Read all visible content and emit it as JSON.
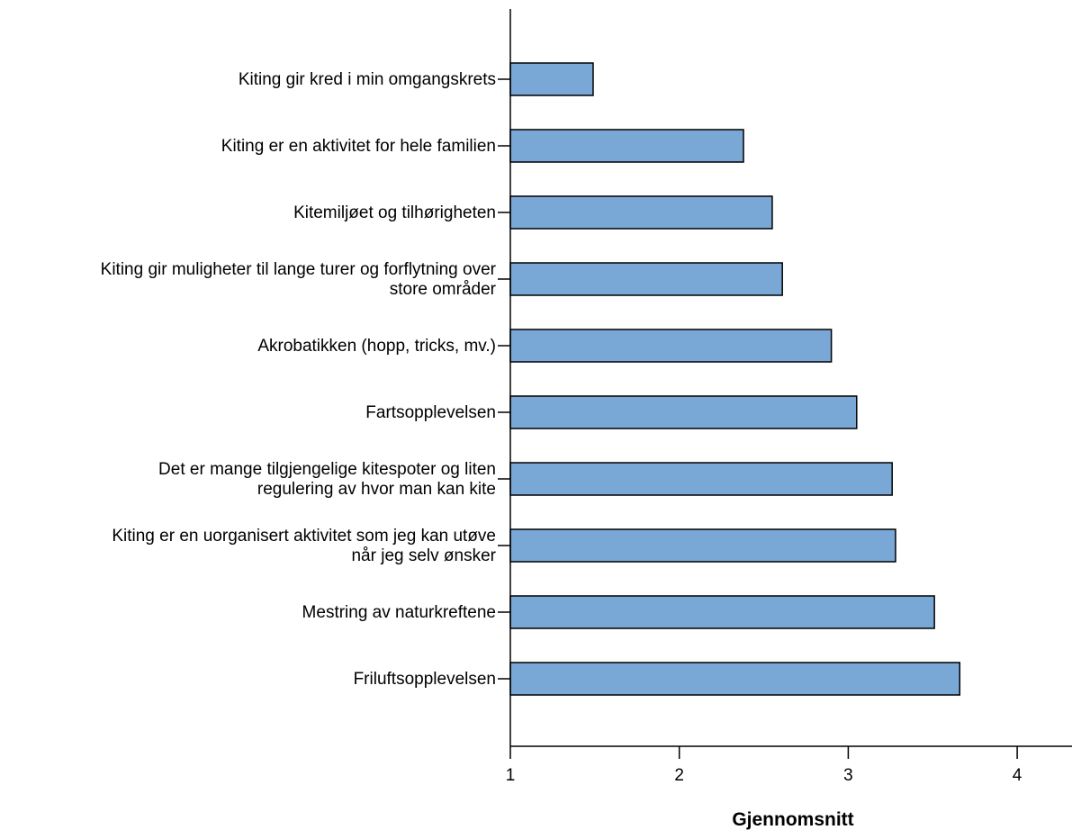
{
  "chart_data": {
    "type": "bar",
    "orientation": "horizontal",
    "categories": [
      [
        "Kiting gir kred i min omgangskrets"
      ],
      [
        "Kiting er en aktivitet for hele familien"
      ],
      [
        "Kitemiljøet og tilhørigheten"
      ],
      [
        "Kiting gir muligheter til lange turer og forflytning over",
        "store områder"
      ],
      [
        "Akrobatikken (hopp, tricks, mv.)"
      ],
      [
        "Fartsopplevelsen"
      ],
      [
        "Det er mange tilgjengelige kitespoter og liten",
        "regulering av hvor man kan kite"
      ],
      [
        "Kiting er en uorganisert aktivitet som jeg kan utøve",
        "når jeg selv ønsker"
      ],
      [
        "Mestring av naturkreftene"
      ],
      [
        "Friluftsopplevelsen"
      ]
    ],
    "values": [
      1.49,
      2.38,
      2.55,
      2.61,
      2.9,
      3.05,
      3.26,
      3.28,
      3.51,
      3.66
    ],
    "xlabel": "Gjennomsnitt",
    "ylabel": "",
    "title": "",
    "xlim": [
      1,
      4.3
    ],
    "xticks": [
      "1",
      "2",
      "3",
      "4"
    ],
    "bar_color": "#7aa8d6",
    "bar_edge_color": "#000000",
    "grid": false,
    "legend": "none"
  }
}
